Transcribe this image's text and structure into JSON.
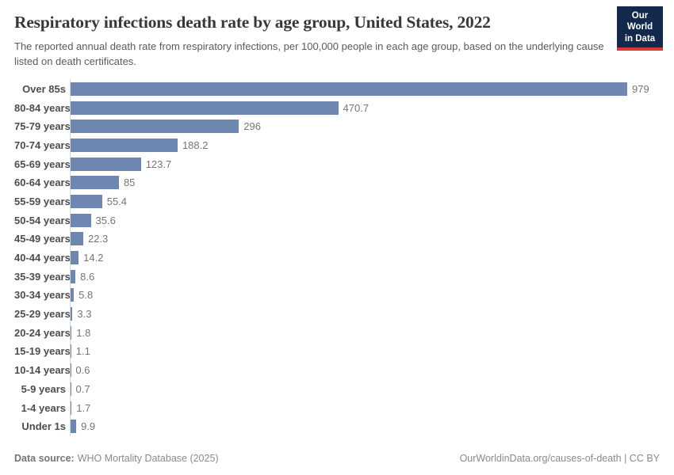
{
  "header": {
    "title": "Respiratory infections death rate by age group, United States, 2022",
    "subtitle": "The reported annual death rate from respiratory infections, per 100,000 people in each age group, based on the underlying cause listed on death certificates.",
    "logo": {
      "line1": "Our World",
      "line2": "in Data",
      "bg_color": "#12294b",
      "accent_color": "#d73b33"
    }
  },
  "chart_data": {
    "type": "bar",
    "orientation": "horizontal",
    "title": "Respiratory infections death rate by age group, United States, 2022",
    "xlabel": "",
    "ylabel": "",
    "xlim": [
      0,
      979
    ],
    "grid": false,
    "legend": "none",
    "bar_color": "#6d87b1",
    "categories": [
      "Over 85s",
      "80-84 years",
      "75-79 years",
      "70-74 years",
      "65-69 years",
      "60-64 years",
      "55-59 years",
      "50-54 years",
      "45-49 years",
      "40-44 years",
      "35-39 years",
      "30-34 years",
      "25-29 years",
      "20-24 years",
      "15-19 years",
      "10-14 years",
      "5-9 years",
      "1-4 years",
      "Under 1s"
    ],
    "values": [
      979,
      470.7,
      296,
      188.2,
      123.7,
      85,
      55.4,
      35.6,
      22.3,
      14.2,
      8.6,
      5.8,
      3.3,
      1.8,
      1.1,
      0.6,
      0.7,
      1.7,
      9.9
    ],
    "value_labels": [
      "979",
      "470.7",
      "296",
      "188.2",
      "123.7",
      "85",
      "55.4",
      "35.6",
      "22.3",
      "14.2",
      "8.6",
      "5.8",
      "3.3",
      "1.8",
      "1.1",
      "0.6",
      "0.7",
      "1.7",
      "9.9"
    ]
  },
  "footer": {
    "datasource_label": "Data source:",
    "datasource_value": "WHO Mortality Database (2025)",
    "credit": "OurWorldinData.org/causes-of-death | CC BY"
  }
}
